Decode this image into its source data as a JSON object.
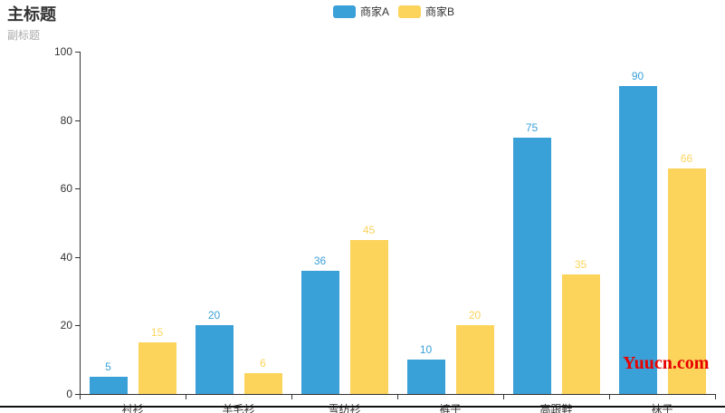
{
  "page": {
    "title": "主标题",
    "subtitle": "副标题"
  },
  "watermark": {
    "text": "Yuucn.com",
    "color": "#e60000"
  },
  "colors": {
    "axis": "#333333",
    "title": "#333333",
    "subtitle": "#aaaaaa",
    "bottom_border": "#111111"
  },
  "chart_data": {
    "type": "bar",
    "title": "主标题",
    "subtitle": "副标题",
    "categories": [
      "衬衫",
      "羊毛衫",
      "雪纺衫",
      "裤子",
      "高跟鞋",
      "袜子"
    ],
    "series": [
      {
        "name": "商家A",
        "color": "#3AA0D8",
        "values": [
          5,
          20,
          36,
          10,
          75,
          90
        ]
      },
      {
        "name": "商家B",
        "color": "#FCD45C",
        "values": [
          15,
          6,
          45,
          20,
          35,
          66
        ]
      }
    ],
    "ylim": [
      0,
      100
    ],
    "y_ticks": [
      0,
      20,
      40,
      60,
      80,
      100
    ],
    "grid": false,
    "legend_position": "top-center",
    "value_labels": true,
    "value_label_color": "match-series"
  }
}
